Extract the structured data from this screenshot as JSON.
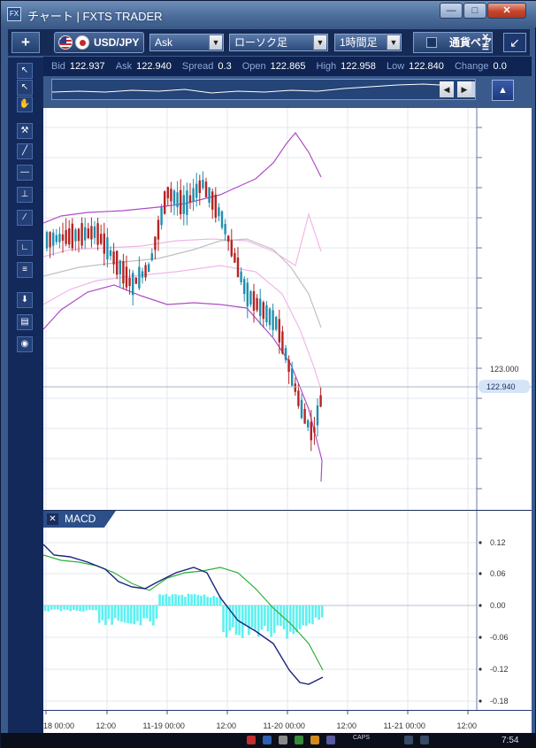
{
  "window": {
    "title": "チャート | FXTS TRADER",
    "icon_text": "FX"
  },
  "toolbar": {
    "add_label": "+",
    "pair": "USD/JPY",
    "price_type": "Ask",
    "chart_type": "ローソク足",
    "period": "1時間足",
    "currency_check_label": "通貨ペア",
    "expand_icon": "expand-icon"
  },
  "quote": {
    "bid_label": "Bid",
    "bid": "122.937",
    "ask_label": "Ask",
    "ask": "122.940",
    "spread_label": "Spread",
    "spread": "0.3",
    "open_label": "Open",
    "open": "122.865",
    "high_label": "High",
    "high": "122.958",
    "low_label": "Low",
    "low": "122.840",
    "change_label": "Change",
    "change": "0.0"
  },
  "price_axis": {
    "tick_label": "123.000",
    "current_price": "122.940"
  },
  "macd": {
    "tab_label": "MACD",
    "ticks": [
      "0.12",
      "0.06",
      "0.00",
      "-0.06",
      "-0.12",
      "-0.18"
    ]
  },
  "time_axis": {
    "labels": [
      "18 00:00",
      "12:00",
      "11-19 00:00",
      "12:00",
      "11-20 00:00",
      "12:00",
      "11-21 00:00",
      "12:00"
    ]
  },
  "taskbar": {
    "caps": "CAPS",
    "clock": "7:54"
  },
  "colors": {
    "bull": "#1f8fb0",
    "bear": "#b52424",
    "bollinger_outer": "#b04cc8",
    "bollinger_inner": "#f0b8e8",
    "moving_average": "#c0c0c0",
    "macd_line": "#1a237e",
    "signal_line": "#2eaf3a",
    "histogram": "#5ef0f0"
  }
}
